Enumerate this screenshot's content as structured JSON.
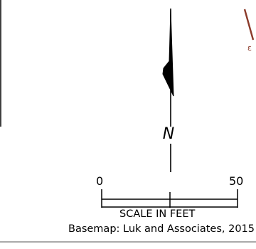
{
  "north_arrow": {
    "letter": "N"
  },
  "scale_bar": {
    "tick_start": "0",
    "tick_end": "50",
    "title": "SCALE IN FEET"
  },
  "credit": {
    "text": "Basemap: Luk and Associates, 2015"
  },
  "map_fragment": {
    "label_fragment": "ε",
    "line_color": "#8b3a2a"
  }
}
